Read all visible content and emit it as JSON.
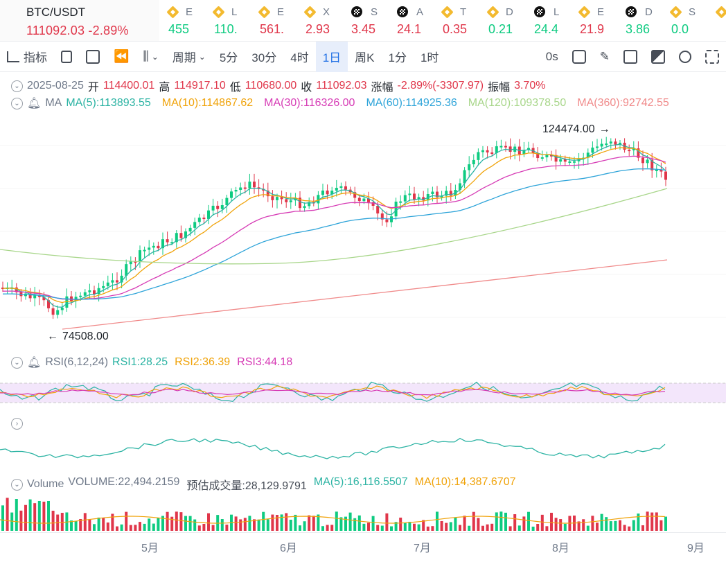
{
  "main_ticker": {
    "symbol": "BTC/USDT",
    "price": "111092.03",
    "change": "-2.89%"
  },
  "tickers": [
    {
      "icon": "bnb-icon",
      "letter": "E",
      "value": "455",
      "dir": "up"
    },
    {
      "icon": "bnb-icon",
      "letter": "L",
      "value": "110.",
      "dir": "up"
    },
    {
      "icon": "bnb-icon",
      "letter": "E",
      "value": "561.",
      "dir": "dn"
    },
    {
      "icon": "bnb-icon",
      "letter": "X",
      "value": "2.93",
      "dir": "dn"
    },
    {
      "icon": "okx-icon",
      "letter": "S",
      "value": "3.45",
      "dir": "dn"
    },
    {
      "icon": "okx-icon",
      "letter": "A",
      "value": "24.1",
      "dir": "dn"
    },
    {
      "icon": "bnb-icon",
      "letter": "T",
      "value": "0.35",
      "dir": "dn"
    },
    {
      "icon": "bnb-icon",
      "letter": "D",
      "value": "0.21",
      "dir": "up"
    },
    {
      "icon": "okx-icon",
      "letter": "L",
      "value": "24.4",
      "dir": "up"
    },
    {
      "icon": "bnb-icon",
      "letter": "E",
      "value": "21.9",
      "dir": "dn"
    },
    {
      "icon": "okx-icon",
      "letter": "D",
      "value": "3.86",
      "dir": "up"
    },
    {
      "icon": "bnb-icon",
      "letter": "S",
      "value": "0.0",
      "dir": "up"
    },
    {
      "icon": "bnb-icon",
      "letter": "",
      "value": "",
      "dir": "up"
    }
  ],
  "toolbar": {
    "indicator": "指标",
    "period": "周期",
    "intervals": [
      "5分",
      "30分",
      "4时",
      "1日",
      "周K",
      "1分",
      "1时"
    ],
    "active_interval": "1日",
    "countdown": "0s"
  },
  "ohlc": {
    "date": "2025-08-25",
    "open_label": "开",
    "open": "114400.01",
    "high_label": "高",
    "high": "114917.10",
    "low_label": "低",
    "low": "110680.00",
    "close_label": "收",
    "close": "111092.03",
    "change_label": "涨幅",
    "change": "-2.89%(-3307.97)",
    "amp_label": "振幅",
    "amp": "3.70%"
  },
  "ma": {
    "label": "MA",
    "items": [
      {
        "text": "MA(5):113893.55",
        "color": "#2bb3a3"
      },
      {
        "text": "MA(10):114867.62",
        "color": "#f0a30a"
      },
      {
        "text": "MA(30):116326.00",
        "color": "#d63bb5"
      },
      {
        "text": "MA(60):114925.36",
        "color": "#2ea4d9"
      },
      {
        "text": "MA(120):109378.50",
        "color": "#a8d68a"
      },
      {
        "text": "MA(360):92742.55",
        "color": "#f08a8a"
      }
    ]
  },
  "price_marks": {
    "high": "124474.00",
    "low": "74508.00"
  },
  "rsi": {
    "label": "RSI(6,12,24)",
    "items": [
      {
        "text": "RSI1:28.25",
        "color": "#2bb3a3"
      },
      {
        "text": "RSI2:36.39",
        "color": "#f0a30a"
      },
      {
        "text": "RSI3:44.18",
        "color": "#d63bb5"
      }
    ]
  },
  "volume": {
    "label": "Volume",
    "items": [
      {
        "text": "VOLUME:22,494.2159",
        "color": "#707a8a"
      },
      {
        "text": "预估成交量:28,129.9791",
        "color": "#474d57"
      },
      {
        "text": "MA(5):16,116.5507",
        "color": "#2bb3a3"
      },
      {
        "text": "MA(10):14,387.6707",
        "color": "#f0a30a"
      }
    ]
  },
  "x_axis": [
    "5月",
    "6月",
    "7月",
    "8月",
    "9月"
  ],
  "chart_data": {
    "type": "candlestick",
    "x_range": [
      "2025-04",
      "2025-08-25"
    ],
    "y_range": [
      74508,
      124474
    ],
    "high": 124474,
    "low": 74508,
    "last_close": 111092.03
  }
}
